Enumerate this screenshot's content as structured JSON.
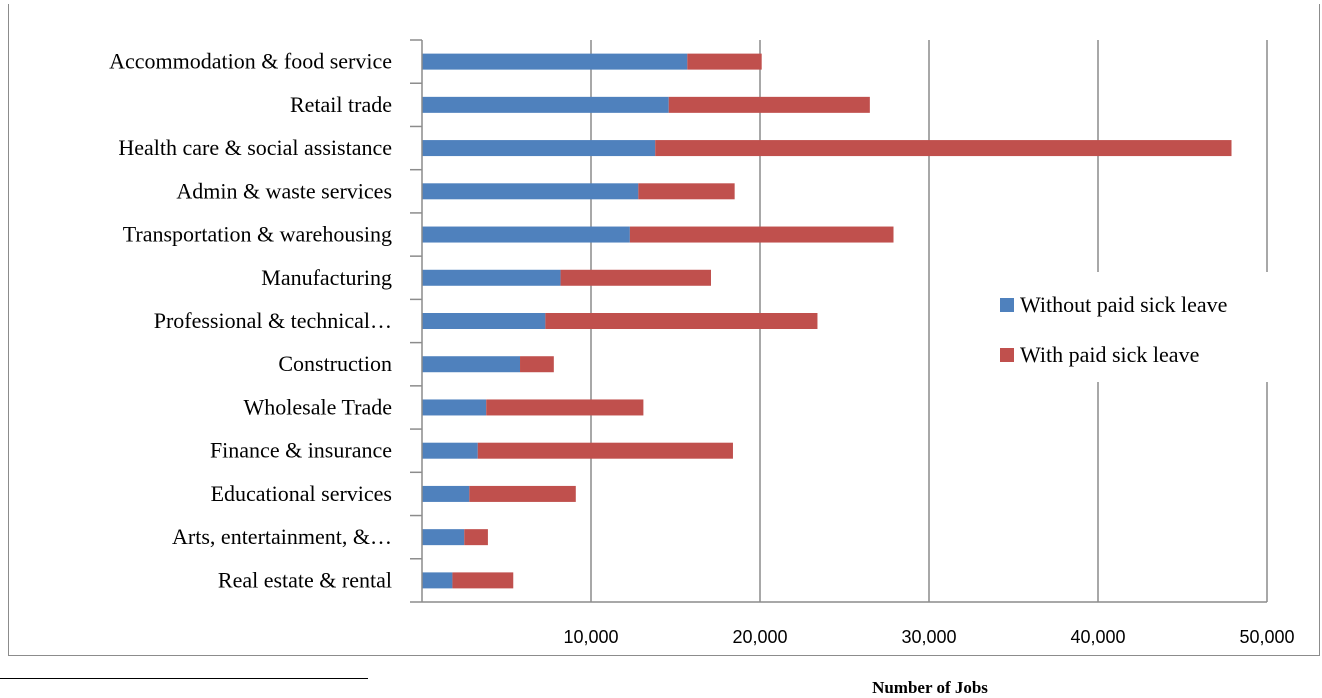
{
  "chart_data": {
    "type": "bar",
    "orientation": "horizontal",
    "stacked": true,
    "title": "",
    "xlabel": "Number of Jobs",
    "ylabel": "",
    "xlim": [
      0,
      50000
    ],
    "xticks": [
      10000,
      20000,
      30000,
      40000,
      50000
    ],
    "xtick_labels": [
      "10,000",
      "20,000",
      "30,000",
      "40,000",
      "50,000"
    ],
    "grid": "vertical major gridlines",
    "legend_position": "right",
    "categories": [
      "Accommodation & food service",
      "Retail trade",
      "Health care & social assistance",
      "Admin & waste services",
      "Transportation & warehousing",
      "Manufacturing",
      "Professional & technical…",
      "Construction",
      "Wholesale Trade",
      "Finance & insurance",
      "Educational services",
      "Arts, entertainment, &…",
      "Real estate & rental"
    ],
    "series": [
      {
        "name": "Without paid sick leave",
        "color": "#4f81bd",
        "values": [
          15700,
          14600,
          13800,
          12800,
          12300,
          8200,
          7300,
          5800,
          3800,
          3300,
          2800,
          2500,
          1800
        ]
      },
      {
        "name": "With paid sick leave",
        "color": "#c0504d",
        "values": [
          4400,
          11900,
          34100,
          5700,
          15600,
          8900,
          16100,
          2000,
          9300,
          15100,
          6300,
          1400,
          3600
        ]
      }
    ]
  }
}
